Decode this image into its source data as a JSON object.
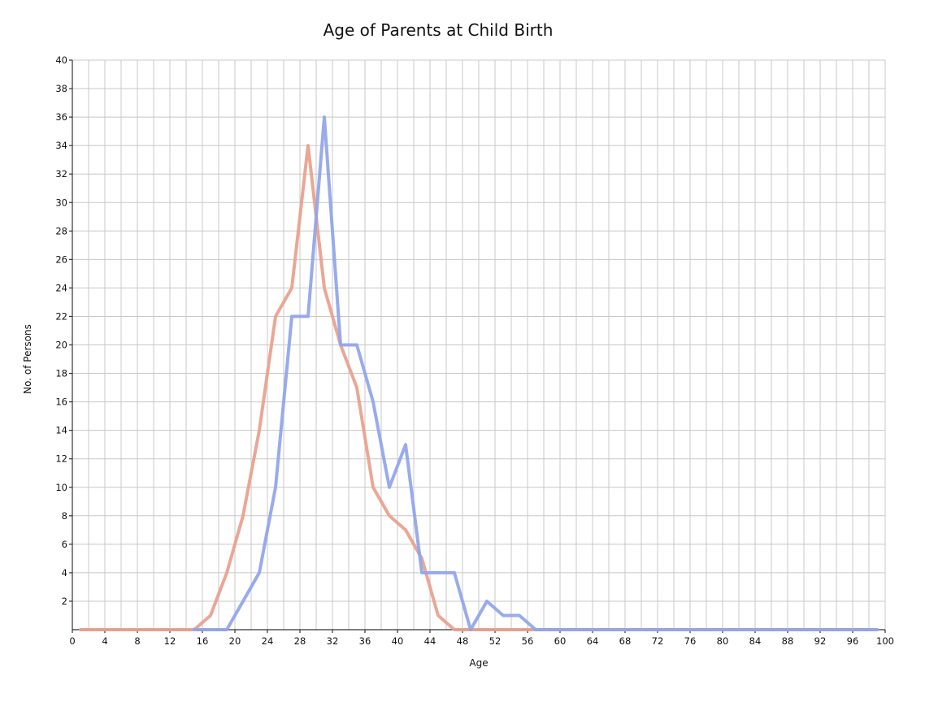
{
  "chart_data": {
    "type": "line",
    "title": "Age of Parents at Child Birth",
    "xlabel": "Age",
    "ylabel": "No. of Persons",
    "xlim": [
      0,
      100
    ],
    "ylim": [
      0,
      40
    ],
    "x_ticks": [
      "0",
      "4",
      "8",
      "12",
      "16",
      "20",
      "24",
      "28",
      "32",
      "36",
      "40",
      "44",
      "48",
      "52",
      "56",
      "60",
      "64",
      "68",
      "72",
      "76",
      "80",
      "84",
      "88",
      "92",
      "96",
      "100"
    ],
    "y_ticks": [
      "2",
      "4",
      "6",
      "8",
      "10",
      "12",
      "14",
      "16",
      "18",
      "20",
      "22",
      "24",
      "26",
      "28",
      "30",
      "32",
      "34",
      "36",
      "38",
      "40"
    ],
    "grid": true,
    "series": [
      {
        "color": "#e8a08c",
        "points": [
          [
            1,
            0
          ],
          [
            15,
            0
          ],
          [
            17,
            1
          ],
          [
            19,
            4
          ],
          [
            21,
            8
          ],
          [
            23,
            14
          ],
          [
            25,
            22
          ],
          [
            27,
            24
          ],
          [
            29,
            34
          ],
          [
            31,
            24
          ],
          [
            33,
            20
          ],
          [
            35,
            17
          ],
          [
            37,
            10
          ],
          [
            39,
            8
          ],
          [
            41,
            7
          ],
          [
            43,
            5
          ],
          [
            45,
            1
          ],
          [
            47,
            0
          ],
          [
            99,
            0
          ]
        ]
      },
      {
        "color": "#8fa4ea",
        "points": [
          [
            15,
            0
          ],
          [
            19,
            0
          ],
          [
            21,
            2
          ],
          [
            23,
            4
          ],
          [
            25,
            10
          ],
          [
            27,
            22
          ],
          [
            29,
            22
          ],
          [
            31,
            36
          ],
          [
            33,
            20
          ],
          [
            35,
            20
          ],
          [
            37,
            16
          ],
          [
            39,
            10
          ],
          [
            41,
            13
          ],
          [
            43,
            4
          ],
          [
            45,
            4
          ],
          [
            47,
            4
          ],
          [
            49,
            0
          ],
          [
            51,
            2
          ],
          [
            53,
            1
          ],
          [
            55,
            1
          ],
          [
            57,
            0
          ],
          [
            99,
            0
          ]
        ]
      }
    ]
  }
}
